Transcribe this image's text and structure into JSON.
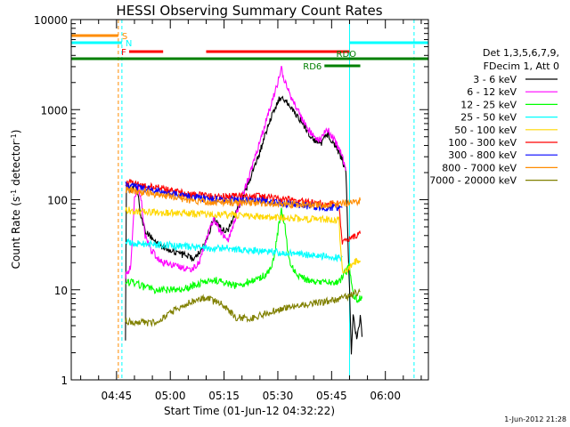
{
  "chart_data": {
    "type": "line",
    "title": "HESSI Observing Summary Count Rates",
    "xlabel": "Start Time (01-Jun-12 04:32:22)",
    "ylabel_main": "Count Rate (s",
    "ylabel_sup1": "-1",
    "ylabel_mid": " detector",
    "ylabel_sup2": "-1",
    "ylabel_end": ")",
    "footer_date": "1-Jun-2012 21:28",
    "y_scale": "log",
    "ylim": [
      1,
      10000
    ],
    "xlim": [
      "04:32:22",
      "06:12:00"
    ],
    "x_ticks": [
      {
        "t": "04:45",
        "label": "04:45"
      },
      {
        "t": "05:00",
        "label": "05:00"
      },
      {
        "t": "05:15",
        "label": "05:15"
      },
      {
        "t": "05:30",
        "label": "05:30"
      },
      {
        "t": "05:45",
        "label": "05:45"
      },
      {
        "t": "06:00",
        "label": "06:00"
      }
    ],
    "y_ticks": [
      {
        "v": 1,
        "label": "1"
      },
      {
        "v": 10,
        "label": "10"
      },
      {
        "v": 100,
        "label": "100"
      },
      {
        "v": 1000,
        "label": "1000"
      },
      {
        "v": 10000,
        "label": "10000"
      }
    ],
    "legend": {
      "header": [
        "Det 1,3,5,6,7,9,",
        "FDecim 1, Att 0"
      ],
      "placement": "right"
    },
    "series": [
      {
        "name": "3 - 6 keV",
        "color": "#000000",
        "points": [
          [
            "04:47:30",
            3
          ],
          [
            "04:47:45",
            150
          ],
          [
            "04:49",
            120
          ],
          [
            "04:50",
            150
          ],
          [
            "04:51",
            110
          ],
          [
            "04:52",
            60
          ],
          [
            "04:53",
            45
          ],
          [
            "04:54",
            40
          ],
          [
            "04:56",
            35
          ],
          [
            "04:58",
            30
          ],
          [
            "05:00",
            28
          ],
          [
            "05:02",
            26
          ],
          [
            "05:04",
            24
          ],
          [
            "05:06",
            22
          ],
          [
            "05:08",
            25
          ],
          [
            "05:10",
            35
          ],
          [
            "05:12",
            60
          ],
          [
            "05:14",
            50
          ],
          [
            "05:16",
            45
          ],
          [
            "05:18",
            70
          ],
          [
            "05:20",
            100
          ],
          [
            "05:22",
            160
          ],
          [
            "05:24",
            260
          ],
          [
            "05:26",
            450
          ],
          [
            "05:28",
            800
          ],
          [
            "05:30",
            1200
          ],
          [
            "05:31",
            1450
          ],
          [
            "05:32",
            1300
          ],
          [
            "05:34",
            1050
          ],
          [
            "05:36",
            800
          ],
          [
            "05:38",
            600
          ],
          [
            "05:40",
            470
          ],
          [
            "05:42",
            420
          ],
          [
            "05:43",
            500
          ],
          [
            "05:44",
            520
          ],
          [
            "05:46",
            400
          ],
          [
            "05:48",
            280
          ],
          [
            "05:49",
            200
          ],
          [
            "05:50",
            10
          ],
          [
            "05:50:30",
            2
          ],
          [
            "05:51",
            5
          ],
          [
            "05:52",
            3
          ],
          [
            "05:53",
            5
          ],
          [
            "05:53:30",
            3
          ]
        ]
      },
      {
        "name": "6 - 12 keV",
        "color": "#ff00ff",
        "points": [
          [
            "04:47:30",
            14
          ],
          [
            "04:47:45",
            15
          ],
          [
            "04:49",
            18
          ],
          [
            "04:50",
            100
          ],
          [
            "04:51",
            150
          ],
          [
            "04:52",
            90
          ],
          [
            "04:53",
            40
          ],
          [
            "04:54",
            30
          ],
          [
            "04:56",
            24
          ],
          [
            "04:58",
            20
          ],
          [
            "05:00",
            19
          ],
          [
            "05:02",
            18
          ],
          [
            "05:04",
            17
          ],
          [
            "05:06",
            17
          ],
          [
            "05:08",
            20
          ],
          [
            "05:10",
            35
          ],
          [
            "05:12",
            60
          ],
          [
            "05:14",
            45
          ],
          [
            "05:16",
            35
          ],
          [
            "05:18",
            60
          ],
          [
            "05:20",
            110
          ],
          [
            "05:22",
            180
          ],
          [
            "05:24",
            330
          ],
          [
            "05:26",
            600
          ],
          [
            "05:28",
            1100
          ],
          [
            "05:30",
            2000
          ],
          [
            "05:31",
            2800
          ],
          [
            "05:32",
            2000
          ],
          [
            "05:34",
            1300
          ],
          [
            "05:36",
            900
          ],
          [
            "05:38",
            650
          ],
          [
            "05:40",
            500
          ],
          [
            "05:42",
            450
          ],
          [
            "05:43",
            560
          ],
          [
            "05:44",
            590
          ],
          [
            "05:46",
            450
          ],
          [
            "05:48",
            300
          ],
          [
            "05:49",
            210
          ]
        ]
      },
      {
        "name": "12 - 25 keV",
        "color": "#00ff00",
        "points": [
          [
            "04:47:30",
            13
          ],
          [
            "04:48",
            12
          ],
          [
            "04:50",
            12
          ],
          [
            "04:52",
            11
          ],
          [
            "04:55",
            10
          ],
          [
            "04:58",
            10
          ],
          [
            "05:00",
            10
          ],
          [
            "05:03",
            10
          ],
          [
            "05:06",
            11
          ],
          [
            "05:09",
            12
          ],
          [
            "05:12",
            13
          ],
          [
            "05:15",
            12
          ],
          [
            "05:18",
            11
          ],
          [
            "05:21",
            12
          ],
          [
            "05:24",
            13
          ],
          [
            "05:27",
            15
          ],
          [
            "05:29",
            22
          ],
          [
            "05:30",
            45
          ],
          [
            "05:31",
            75
          ],
          [
            "05:32",
            50
          ],
          [
            "05:33",
            22
          ],
          [
            "05:35",
            15
          ],
          [
            "05:38",
            13
          ],
          [
            "05:40",
            12
          ],
          [
            "05:43",
            12
          ],
          [
            "05:45",
            12
          ],
          [
            "05:47",
            12
          ],
          [
            "05:48",
            14
          ],
          [
            "05:50",
            18
          ],
          [
            "05:51",
            9
          ],
          [
            "05:52",
            8
          ],
          [
            "05:53",
            8
          ],
          [
            "05:53:30",
            8
          ]
        ]
      },
      {
        "name": "25 - 50 keV",
        "color": "#00ffff",
        "points": [
          [
            "04:47:30",
            34
          ],
          [
            "04:50",
            33
          ],
          [
            "04:55",
            32
          ],
          [
            "05:00",
            31
          ],
          [
            "05:05",
            30
          ],
          [
            "05:10",
            29
          ],
          [
            "05:15",
            29
          ],
          [
            "05:20",
            28
          ],
          [
            "05:25",
            27
          ],
          [
            "05:30",
            26
          ],
          [
            "05:35",
            25
          ],
          [
            "05:40",
            24
          ],
          [
            "05:45",
            23
          ],
          [
            "05:48",
            23
          ]
        ]
      },
      {
        "name": "50 - 100 keV",
        "color": "#ffd700",
        "points": [
          [
            "04:47:30",
            78
          ],
          [
            "04:50",
            74
          ],
          [
            "04:55",
            72
          ],
          [
            "05:00",
            71
          ],
          [
            "05:05",
            70
          ],
          [
            "05:10",
            69
          ],
          [
            "05:15",
            68
          ],
          [
            "05:20",
            67
          ],
          [
            "05:25",
            65
          ],
          [
            "05:30",
            63
          ],
          [
            "05:35",
            62
          ],
          [
            "05:40",
            61
          ],
          [
            "05:45",
            60
          ],
          [
            "05:47",
            60
          ],
          [
            "05:48",
            16
          ],
          [
            "05:49",
            17
          ],
          [
            "05:50",
            17
          ],
          [
            "05:51",
            20
          ],
          [
            "05:52",
            21
          ],
          [
            "05:53",
            21
          ]
        ]
      },
      {
        "name": "100 - 300 keV",
        "color": "#ff0000",
        "points": [
          [
            "04:47:30",
            155
          ],
          [
            "04:50",
            150
          ],
          [
            "04:55",
            140
          ],
          [
            "05:00",
            125
          ],
          [
            "05:05",
            115
          ],
          [
            "05:10",
            110
          ],
          [
            "05:15",
            108
          ],
          [
            "05:20",
            110
          ],
          [
            "05:25",
            108
          ],
          [
            "05:30",
            102
          ],
          [
            "05:35",
            97
          ],
          [
            "05:40",
            92
          ],
          [
            "05:45",
            90
          ],
          [
            "05:47",
            90
          ],
          [
            "05:48",
            34
          ],
          [
            "05:49",
            35
          ],
          [
            "05:50",
            37
          ],
          [
            "05:51",
            39
          ],
          [
            "05:52",
            40
          ],
          [
            "05:53",
            42
          ]
        ]
      },
      {
        "name": "300 - 800 keV",
        "color": "#0000ff",
        "points": [
          [
            "04:47:30",
            145
          ],
          [
            "04:50",
            140
          ],
          [
            "04:55",
            130
          ],
          [
            "05:00",
            118
          ],
          [
            "05:05",
            108
          ],
          [
            "05:10",
            102
          ],
          [
            "05:15",
            100
          ],
          [
            "05:20",
            100
          ],
          [
            "05:25",
            97
          ],
          [
            "05:30",
            92
          ],
          [
            "05:35",
            88
          ],
          [
            "05:40",
            84
          ],
          [
            "05:45",
            82
          ],
          [
            "05:48",
            82
          ]
        ]
      },
      {
        "name": "800 - 7000 keV",
        "color": "#ff8c00",
        "points": [
          [
            "04:47:30",
            130
          ],
          [
            "04:50",
            125
          ],
          [
            "04:55",
            117
          ],
          [
            "05:00",
            108
          ],
          [
            "05:05",
            100
          ],
          [
            "05:10",
            95
          ],
          [
            "05:15",
            93
          ],
          [
            "05:20",
            93
          ],
          [
            "05:25",
            92
          ],
          [
            "05:30",
            90
          ],
          [
            "05:35",
            89
          ],
          [
            "05:40",
            88
          ],
          [
            "05:45",
            88
          ],
          [
            "05:48",
            90
          ],
          [
            "05:50",
            93
          ],
          [
            "05:52",
            96
          ],
          [
            "05:53",
            98
          ]
        ]
      },
      {
        "name": "7000 - 20000 keV",
        "color": "#808000",
        "points": [
          [
            "04:47:30",
            4.5
          ],
          [
            "04:50",
            4.4
          ],
          [
            "04:54",
            4.3
          ],
          [
            "04:57",
            4.5
          ],
          [
            "05:00",
            5.5
          ],
          [
            "05:03",
            6.5
          ],
          [
            "05:06",
            7.5
          ],
          [
            "05:08",
            8
          ],
          [
            "05:10",
            8
          ],
          [
            "05:12",
            7.5
          ],
          [
            "05:14",
            7
          ],
          [
            "05:16",
            6
          ],
          [
            "05:18",
            5
          ],
          [
            "05:21",
            4.8
          ],
          [
            "05:24",
            5
          ],
          [
            "05:27",
            5.5
          ],
          [
            "05:30",
            6
          ],
          [
            "05:33",
            6.5
          ],
          [
            "05:36",
            6.8
          ],
          [
            "05:39",
            7
          ],
          [
            "05:42",
            7.3
          ],
          [
            "05:45",
            7.5
          ],
          [
            "05:48",
            8
          ],
          [
            "05:51",
            9
          ],
          [
            "05:53",
            9.5
          ]
        ]
      }
    ],
    "overlays": {
      "eclipse_lines": [
        {
          "t": "04:32:22",
          "color": "#00ffff",
          "dash": false
        },
        {
          "t": "04:46:30",
          "color": "#00ffff",
          "dash": true
        },
        {
          "t": "05:50:00",
          "color": "#00ffff",
          "dash": false
        },
        {
          "t": "06:08:00",
          "color": "#00ffff",
          "dash": true
        },
        {
          "t": "04:45:30",
          "color": "#ff8c00",
          "dash": true
        }
      ],
      "flag_bars": [
        {
          "label": "S",
          "color": "#ff8c00",
          "t_start": "04:32:22",
          "t_end": "04:45:30",
          "y": 40,
          "label_pos": "right"
        },
        {
          "label": "N",
          "color": "#00ffff",
          "t_start": "04:32:22",
          "t_end": "04:46:30",
          "y": 48,
          "label_pos": "right"
        },
        {
          "label": "N",
          "color": "#00ffff",
          "t_start": "05:50:00",
          "t_end": "06:12:00",
          "y": 48,
          "label_pos": "none"
        },
        {
          "label": "F",
          "color": "#ff0000",
          "t_start": "04:48:30",
          "t_end": "04:58:00",
          "y": 58,
          "label_pos": "left"
        },
        {
          "label": "",
          "color": "#ff0000",
          "t_start": "05:10:00",
          "t_end": "05:50:00",
          "y": 58,
          "label_pos": "none"
        },
        {
          "label": "RDO",
          "color": "#008000",
          "t_start": "04:32:22",
          "t_end": "06:12:00",
          "y": 66,
          "label_pos": "above-mid"
        },
        {
          "label": "RD6",
          "color": "#008000",
          "t_start": "05:43:00",
          "t_end": "05:53:00",
          "y": 74,
          "label_pos": "left"
        }
      ]
    }
  }
}
